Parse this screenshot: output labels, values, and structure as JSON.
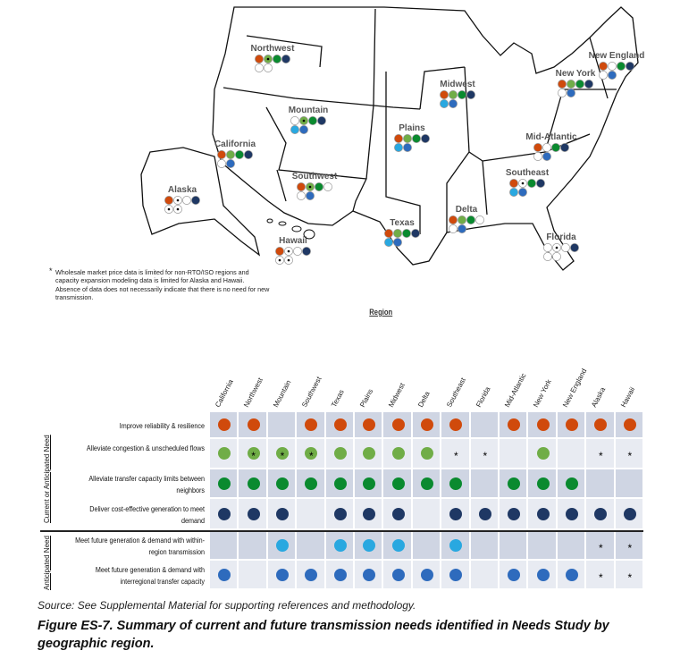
{
  "colors": {
    "reliability": "#d04a0c",
    "congestion": "#70ad47",
    "transfer": "#0a8a2f",
    "generation": "#1f3864",
    "within_region": "#29a8e0",
    "interregional": "#2e6bbd",
    "row_dark": "#cfd5e3",
    "row_light": "#e8ebf2"
  },
  "map": {
    "regions": [
      {
        "label": "Northwest",
        "key": "Northwest"
      },
      {
        "label": "Mountain",
        "key": "Mountain"
      },
      {
        "label": "California",
        "key": "California"
      },
      {
        "label": "Alaska",
        "key": "Alaska"
      },
      {
        "label": "Southwest",
        "key": "Southwest"
      },
      {
        "label": "Hawaii",
        "key": "Hawaii"
      },
      {
        "label": "Texas",
        "key": "Texas"
      },
      {
        "label": "Plains",
        "key": "Plains"
      },
      {
        "label": "Midwest",
        "key": "Midwest"
      },
      {
        "label": "Delta",
        "key": "Delta"
      },
      {
        "label": "Southeast",
        "key": "Southeast"
      },
      {
        "label": "Mid-Atlantic",
        "key": "Mid-Atlantic"
      },
      {
        "label": "New York",
        "key": "New York"
      },
      {
        "label": "New England",
        "key": "New England"
      },
      {
        "label": "Florida",
        "key": "Florida"
      }
    ],
    "footnote_marker": "*",
    "footnote": "Wholesale market price data is limited for non-RTO/ISO regions and capacity expansion modeling data is limited for Alaska and Hawaii. Absence of data does not necessarily indicate that there is no need for new transmission.",
    "axis_title": "Region"
  },
  "table": {
    "columns": [
      "California",
      "Northwest",
      "Mountain",
      "Southwest",
      "Texas",
      "Plains",
      "Midwest",
      "Delta",
      "Southeast",
      "Florida",
      "Mid-Atlantic",
      "New York",
      "New England",
      "Alaska",
      "Hawaii"
    ],
    "groups": [
      {
        "label": "Current or Anticipated Need"
      },
      {
        "label": "Anticipated Need"
      }
    ],
    "rows": [
      {
        "label": "Improve reliability & resilience",
        "color_key": "reliability",
        "values": [
          "dot",
          "dot",
          "",
          "dot",
          "dot",
          "dot",
          "dot",
          "dot",
          "dot",
          "",
          "dot",
          "dot",
          "dot",
          "dot",
          "dot"
        ]
      },
      {
        "label": "Alleviate congestion & unscheduled flows",
        "color_key": "congestion",
        "values": [
          "dot",
          "dot-star",
          "dot-star",
          "dot-star",
          "dot",
          "dot",
          "dot",
          "dot",
          "star",
          "star",
          "",
          "dot",
          "",
          "star",
          "star"
        ]
      },
      {
        "label": "Alleviate transfer capacity limits between neighbors",
        "color_key": "transfer",
        "values": [
          "dot",
          "dot",
          "dot",
          "dot",
          "dot",
          "dot",
          "dot",
          "dot",
          "dot",
          "",
          "dot",
          "dot",
          "dot",
          "",
          ""
        ]
      },
      {
        "label": "Deliver cost-effective generation to meet demand",
        "color_key": "generation",
        "values": [
          "dot",
          "dot",
          "dot",
          "",
          "dot",
          "dot",
          "dot",
          "",
          "dot",
          "dot",
          "dot",
          "dot",
          "dot",
          "dot",
          "dot"
        ]
      },
      {
        "label": "Meet future generation & demand with within-region transmission",
        "color_key": "within_region",
        "values": [
          "",
          "",
          "dot",
          "",
          "dot",
          "dot",
          "dot",
          "",
          "dot",
          "",
          "",
          "",
          "",
          "star",
          "star"
        ]
      },
      {
        "label": "Meet future generation & demand with interregional transfer capacity",
        "color_key": "interregional",
        "values": [
          "dot",
          "",
          "dot",
          "dot",
          "dot",
          "dot",
          "dot",
          "dot",
          "dot",
          "",
          "dot",
          "dot",
          "dot",
          "star",
          "star"
        ]
      }
    ],
    "star_symbol": "*"
  },
  "source": "Source: See Supplemental Material for supporting references and methodology.",
  "caption": "Figure ES-7. Summary of current and future transmission needs identified in Needs Study by geographic region."
}
